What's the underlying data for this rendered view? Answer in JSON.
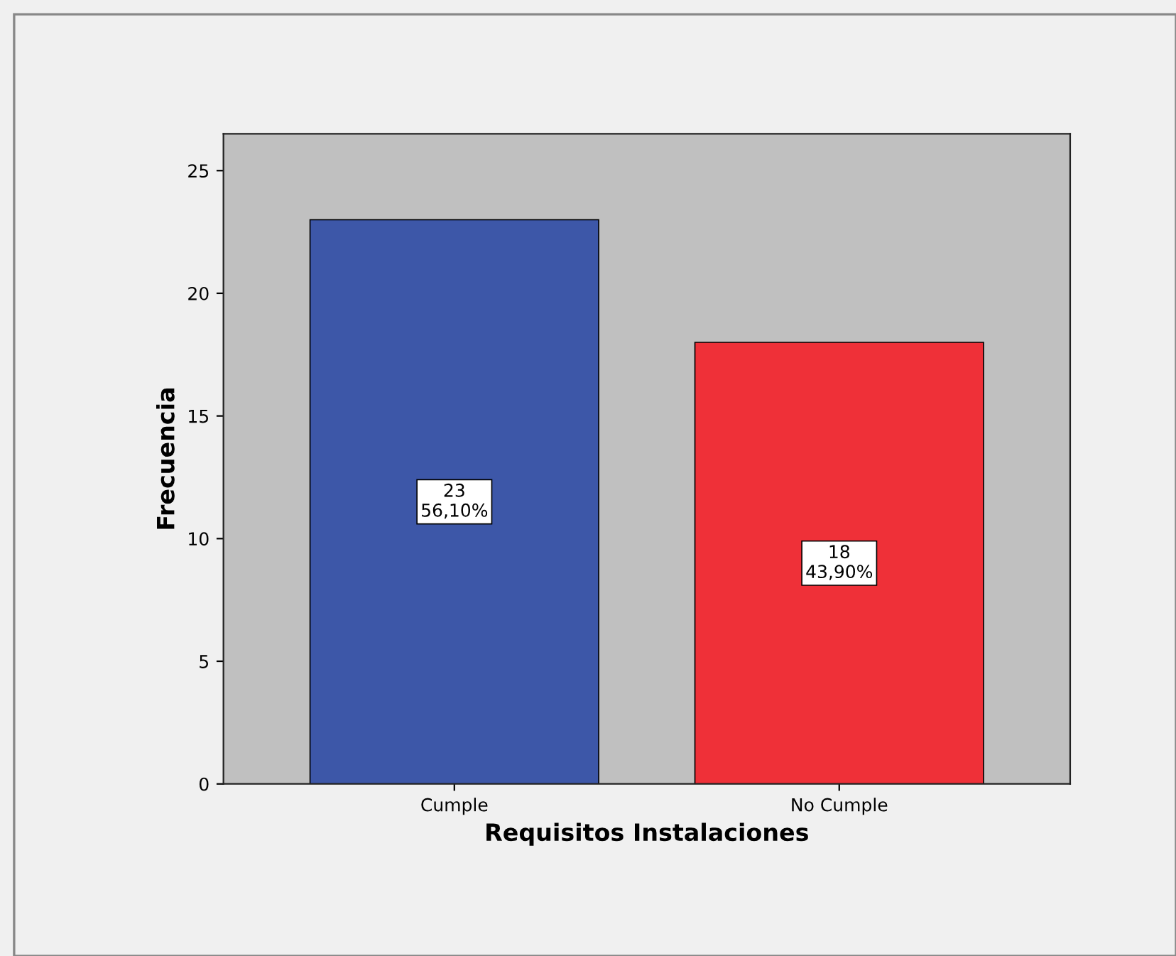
{
  "chart_data": {
    "type": "bar",
    "xlabel": "Requisitos Instalaciones",
    "ylabel": "Frecuencia",
    "categories": [
      "Cumple",
      "No Cumple"
    ],
    "values": [
      23,
      18
    ],
    "colors": [
      "#3d57a8",
      "#ef3038"
    ],
    "value_labels": [
      "23\n56,10%",
      "18\n43,90%"
    ],
    "ylim": [
      0,
      26.5
    ],
    "yticks": [
      0,
      5,
      10,
      15,
      20,
      25
    ],
    "grid": false
  }
}
